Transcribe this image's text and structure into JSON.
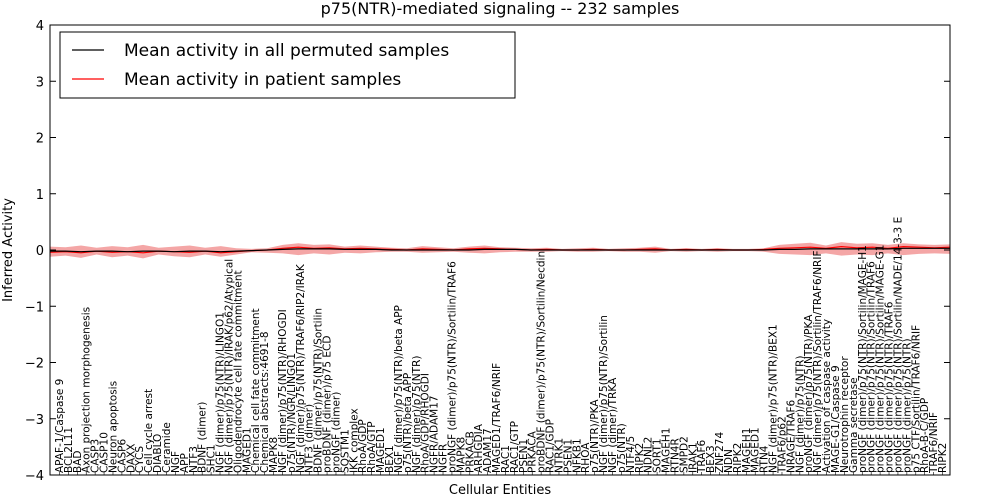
{
  "chart_data": {
    "type": "line",
    "title": "p75(NTR)-mediated signaling -- 232 samples",
    "xlabel": "Cellular Entities",
    "ylabel": "Inferred Activity",
    "ylim": [
      -4,
      4
    ],
    "yticks": [
      -4,
      -3,
      -2,
      -1,
      0,
      1,
      2,
      3,
      4
    ],
    "legend_position": "top-left",
    "colors": {
      "permuted": "#000000",
      "patient": "#ff0000",
      "band": "#f08080"
    },
    "categories": [
      "APAF-1/Caspase 9",
      "BCL2L11",
      "BAD",
      "Axon projection morphogenesis",
      "CASP3",
      "CASP10",
      "Neuron apoptosis",
      "CASP6",
      "DAXX",
      "CYCS",
      "Cell cycle arrest",
      "DIABLO",
      "Ceramide",
      "NGF",
      "APP",
      "NTF3",
      "BDNF (dimer)",
      "SHC1",
      "NGF (dimer)/p75(NTR)/LINGO1",
      "NGF (dimer)/p75(NTR)/IRAK/p62/Atypical",
      "Oligodendrocyte cell fate commitment",
      "MAGED1",
      "Chemical cell fate commitment",
      "Chemical abstracts:4691-8",
      "MAPK8",
      "NGF (dimer)/p75(NTR)/RHOGDI",
      "p75(NTR)/NGR/LINGO1",
      "NGF (dimer)/p75(NTR)/TRAF6/RIP2/IRAK",
      "NTF3 (dimer)",
      "BDNF (dimer)/p75(NTR)/Sortilin",
      "proBDNF (dimer)/p75 ECD",
      "proNGF (dimer)",
      "SQSTM1",
      "IKK complex",
      "RhoA/GDP",
      "RhoA/GTP",
      "MAGED1",
      "BEX1",
      "NGF (dimer)/p75(NTR)/beta APP",
      "p75(NTR)/beta APP",
      "NGF (dimer)/p75(NTR)",
      "RhoA/GDP/RHOGDI",
      "NGFR/ADAM17",
      "NGFR",
      "proNGF (dimer)/p75(NTR)/Sortilin/TRAF6",
      "MAPK8",
      "PRKACB",
      "ARHGDIA",
      "ADAM17",
      "MAGED1/TRAF6/NRIF",
      "RAC1",
      "RAC1/GTP",
      "PSEN1",
      "PRKACA",
      "proBDNF (dimer)/p75(NTR)/Sortilin/Necdin",
      "RAC1/GDP",
      "NTRK1",
      "PSEN1",
      "NFKB1",
      "RHOA",
      "p75(NTR)/PKA",
      "NGF (dimer)/p75(NTR)/Sortilin",
      "NGF (dimer)/TRKA",
      "p75(NTR)",
      "NTF4/5",
      "RIPK2",
      "NDNL2",
      "SORT1",
      "MAGEH1",
      "RTN4R",
      "SMPD2",
      "IRAK1",
      "TRAF6",
      "BEX3",
      "ZNF274",
      "NDN",
      "RIPK2",
      "MAGEH1",
      "MAGED1",
      "RTN4",
      "NGF (dimer)/p75(NTR)/BEX1",
      "TRAF6/p62",
      "NRAGE/TRAF6",
      "NGF (dimer)/p75(NTR)",
      "proNGF (dimer)/p75(NTR)/PKA",
      "NGF (dimer)/p75(NTR)/Sortilin/TRAF6/NRIF",
      "Activation of caspase activity",
      "MAGE-G1/Caspase 9",
      "Neurotrophin receptor",
      "Gamma secretase",
      "proNGF (dimer)/p75(NTR)/Sortilin/MAGE-H1",
      "proNGF (dimer)/p75(NTR)/Sortilin/TRAF6",
      "proNGF (dimer)/p75(NTR)/Sortilin/MAGE-G1",
      "proNGF (dimer)/p75(NTR)/TRAF6",
      "proNGF (dimer)/p75(NTR)/Sortilin/NADE/14-3-3 E",
      "proNGF (dimer)/p75(NTR)",
      "p75 CTF/Sortilin/TRAF6/NRIF",
      "RhoA-B-C/GDP",
      "TRAF6/NRIF",
      "RIPK2"
    ],
    "x": [
      0,
      4,
      8,
      12,
      16,
      20,
      24,
      28,
      32,
      36,
      40,
      44,
      48,
      52,
      56,
      60,
      64,
      68,
      72,
      76,
      80,
      84,
      88,
      92,
      96,
      100,
      104,
      108,
      112,
      116,
      120,
      124,
      128,
      132,
      136,
      140,
      144,
      148,
      152,
      156,
      160,
      164,
      168,
      172,
      176,
      180,
      184,
      188,
      192,
      196,
      200,
      204,
      208,
      212,
      216,
      220,
      224,
      228,
      232
    ],
    "series": [
      {
        "name": "Mean activity in all permuted samples",
        "values": [
          -0.02,
          -0.02,
          -0.03,
          -0.02,
          -0.02,
          -0.03,
          -0.02,
          -0.02,
          -0.03,
          -0.02,
          -0.02,
          -0.03,
          -0.02,
          -0.01,
          0.0,
          0.01,
          0.02,
          0.02,
          0.02,
          0.01,
          0.01,
          0.01,
          0.0,
          0.0,
          0.0,
          0.0,
          0.0,
          0.0,
          0.01,
          0.01,
          0.01,
          0.0,
          0.0,
          0.0,
          0.0,
          0.0,
          0.0,
          0.0,
          0.0,
          0.0,
          0.0,
          0.0,
          0.0,
          0.0,
          0.0,
          0.0,
          0.0,
          0.01,
          0.01,
          0.02,
          0.02,
          0.02,
          0.02,
          0.02,
          0.02,
          0.03,
          0.03,
          0.03,
          0.03
        ]
      },
      {
        "name": "Mean activity in patient samples",
        "values": [
          -0.04,
          -0.03,
          -0.05,
          -0.02,
          -0.04,
          -0.03,
          -0.05,
          -0.02,
          -0.03,
          -0.04,
          -0.02,
          -0.05,
          -0.03,
          -0.01,
          0.0,
          0.03,
          0.05,
          0.03,
          0.04,
          0.02,
          0.03,
          0.02,
          0.01,
          0.0,
          0.02,
          0.01,
          0.0,
          0.02,
          0.03,
          0.02,
          0.01,
          0.0,
          0.01,
          0.0,
          0.0,
          0.01,
          0.0,
          0.0,
          0.01,
          0.02,
          0.0,
          0.01,
          0.0,
          0.01,
          0.0,
          0.0,
          0.01,
          0.03,
          0.04,
          0.05,
          0.03,
          0.06,
          0.04,
          0.05,
          0.03,
          0.06,
          0.05,
          0.04,
          0.05
        ]
      }
    ],
    "band_upper": [
      0.06,
      0.05,
      0.08,
      0.04,
      0.07,
      0.05,
      0.09,
      0.04,
      0.06,
      0.08,
      0.04,
      0.07,
      0.03,
      0.02,
      0.03,
      0.09,
      0.12,
      0.09,
      0.1,
      0.06,
      0.08,
      0.06,
      0.04,
      0.03,
      0.07,
      0.05,
      0.03,
      0.06,
      0.08,
      0.05,
      0.04,
      0.03,
      0.04,
      0.02,
      0.03,
      0.04,
      0.02,
      0.03,
      0.04,
      0.06,
      0.02,
      0.03,
      0.02,
      0.03,
      0.02,
      0.02,
      0.03,
      0.09,
      0.11,
      0.13,
      0.08,
      0.14,
      0.11,
      0.12,
      0.09,
      0.12,
      0.1,
      0.09,
      0.1
    ],
    "band_lower": [
      -0.12,
      -0.1,
      -0.14,
      -0.08,
      -0.13,
      -0.1,
      -0.15,
      -0.08,
      -0.11,
      -0.13,
      -0.08,
      -0.12,
      -0.08,
      -0.04,
      -0.05,
      -0.06,
      -0.09,
      -0.06,
      -0.08,
      -0.05,
      -0.06,
      -0.04,
      -0.03,
      -0.03,
      -0.05,
      -0.04,
      -0.03,
      -0.05,
      -0.06,
      -0.04,
      -0.03,
      -0.03,
      -0.03,
      -0.02,
      -0.03,
      -0.03,
      -0.02,
      -0.03,
      -0.03,
      -0.05,
      -0.02,
      -0.03,
      -0.02,
      -0.03,
      -0.02,
      -0.02,
      -0.03,
      -0.07,
      -0.08,
      -0.09,
      -0.06,
      -0.1,
      -0.08,
      -0.09,
      -0.06,
      -0.09,
      -0.07,
      -0.06,
      -0.07
    ]
  }
}
